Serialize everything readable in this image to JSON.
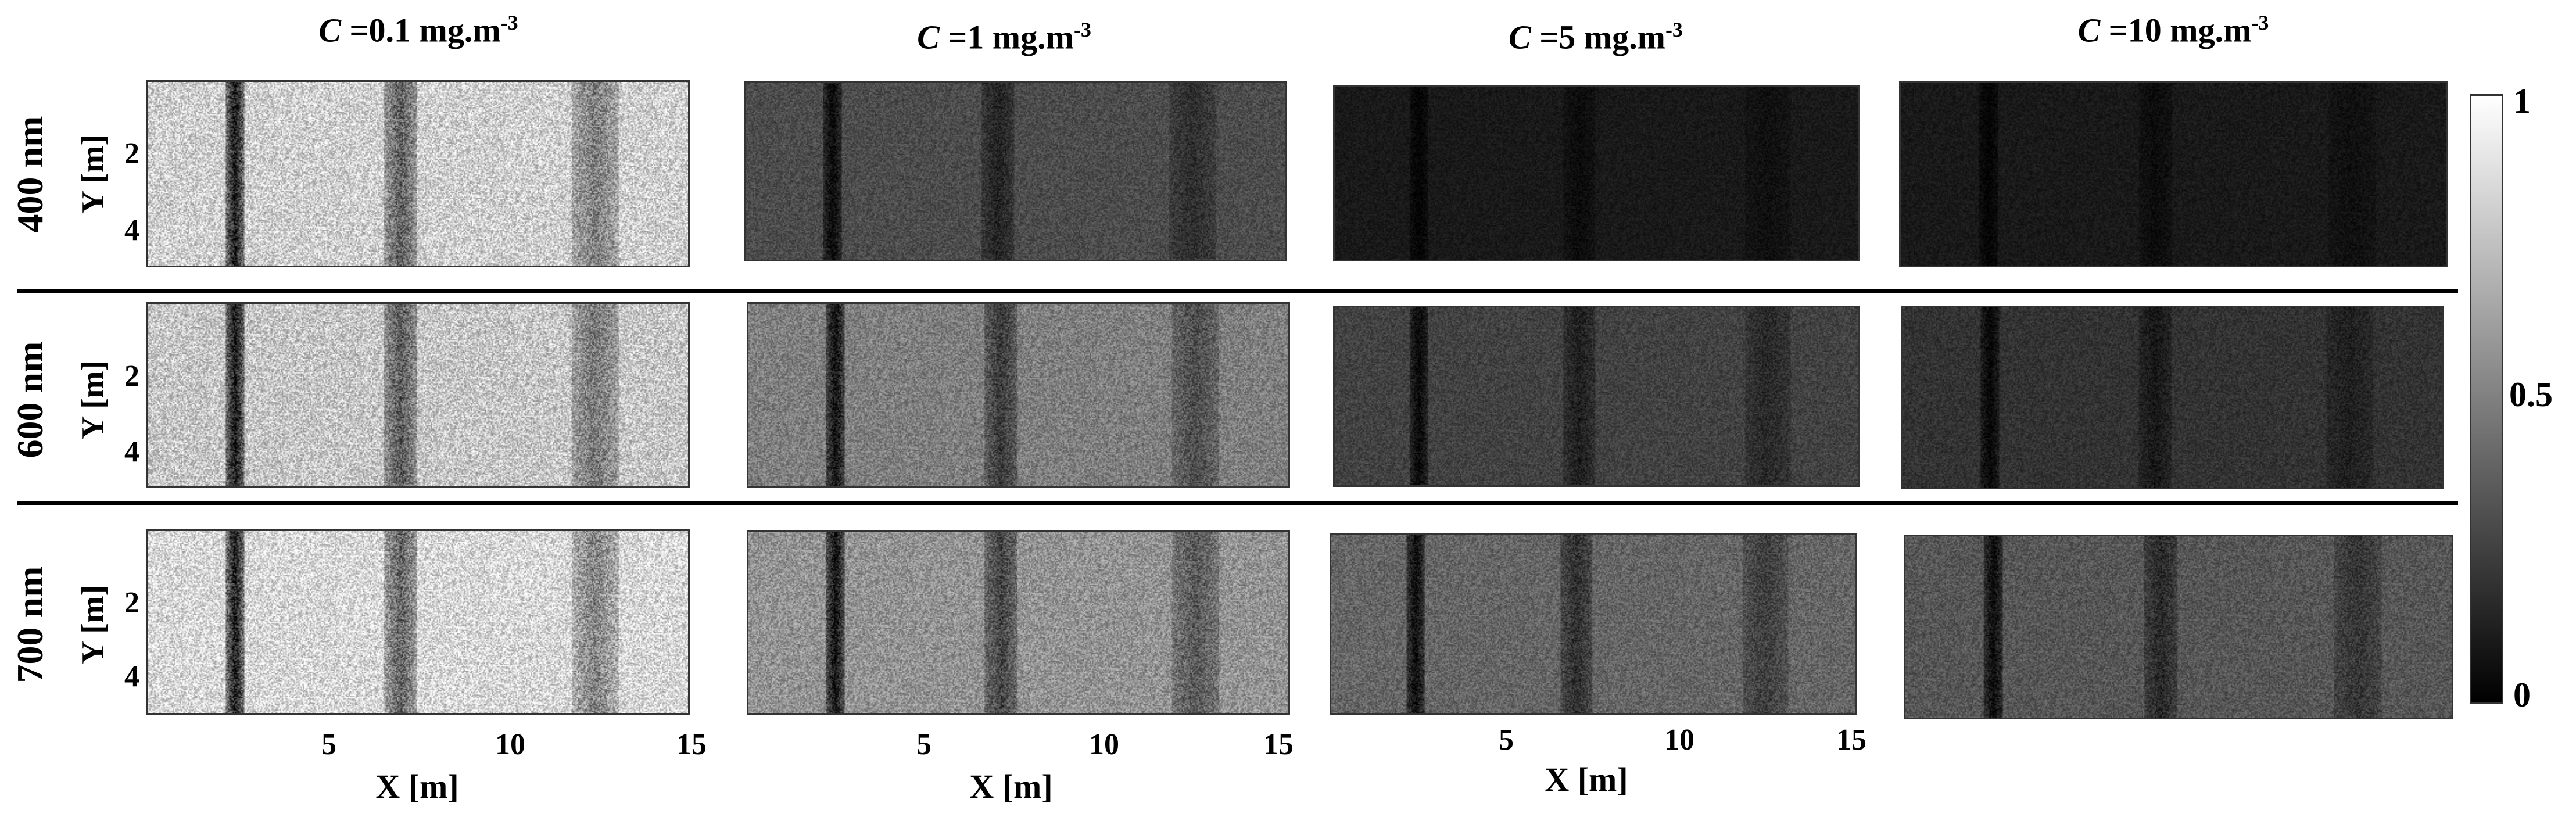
{
  "columns": [
    {
      "c_symbol": "C",
      "value": " =0.1 mg.m",
      "exp": "-3"
    },
    {
      "c_symbol": "C",
      "value": " =1 mg.m",
      "exp": "-3"
    },
    {
      "c_symbol": "C",
      "value": " =5 mg.m",
      "exp": "-3"
    },
    {
      "c_symbol": "C",
      "value": " =10 mg.m",
      "exp": "-3"
    }
  ],
  "rows": [
    {
      "label": "400 nm",
      "brightness": [
        0.82,
        0.3,
        0.1,
        0.1
      ]
    },
    {
      "label": "600 nm",
      "brightness": [
        0.78,
        0.5,
        0.26,
        0.2
      ]
    },
    {
      "label": "700 nm",
      "brightness": [
        0.86,
        0.58,
        0.4,
        0.34
      ]
    }
  ],
  "axes": {
    "ylabel": "Y [m]",
    "xlabel": "X [m]",
    "yticks": [
      "2",
      "4"
    ],
    "xticks": [
      "5",
      "10",
      "15"
    ]
  },
  "colorbar": {
    "ticks": [
      "1",
      "0.5",
      "0"
    ],
    "range": [
      0,
      1
    ],
    "colormap": "gray"
  },
  "stripes_x_m": [
    2.4,
    7.0,
    12.4
  ]
}
